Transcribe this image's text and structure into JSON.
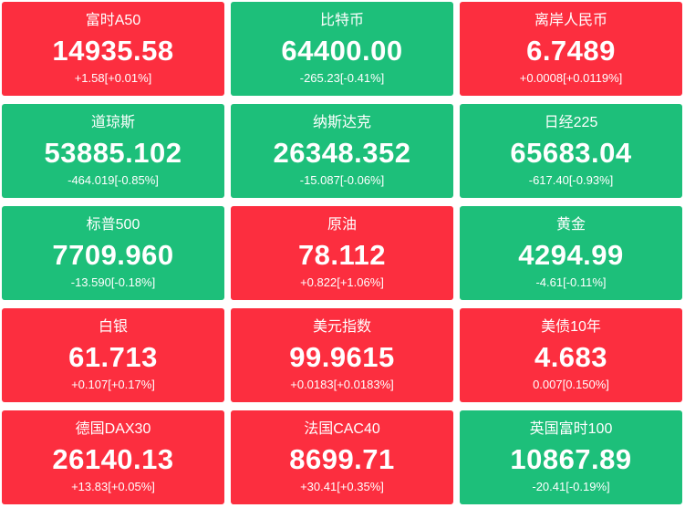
{
  "tiles": [
    {
      "name": "富时A50",
      "price": "14935.58",
      "change": "+1.58[+0.01%]",
      "color": "#fc2e3f"
    },
    {
      "name": "比特币",
      "price": "64400.00",
      "change": "-265.23[-0.41%]",
      "color": "#1dbf7a"
    },
    {
      "name": "离岸人民币",
      "price": "6.7489",
      "change": "+0.0008[+0.0119%]",
      "color": "#fc2e3f"
    },
    {
      "name": "道琼斯",
      "price": "53885.102",
      "change": "-464.019[-0.85%]",
      "color": "#1dbf7a"
    },
    {
      "name": "纳斯达克",
      "price": "26348.352",
      "change": "-15.087[-0.06%]",
      "color": "#1dbf7a"
    },
    {
      "name": "日经225",
      "price": "65683.04",
      "change": "-617.40[-0.93%]",
      "color": "#1dbf7a"
    },
    {
      "name": "标普500",
      "price": "7709.960",
      "change": "-13.590[-0.18%]",
      "color": "#1dbf7a"
    },
    {
      "name": "原油",
      "price": "78.112",
      "change": "+0.822[+1.06%]",
      "color": "#fc2e3f"
    },
    {
      "name": "黄金",
      "price": "4294.99",
      "change": "-4.61[-0.11%]",
      "color": "#1dbf7a"
    },
    {
      "name": "白银",
      "price": "61.713",
      "change": "+0.107[+0.17%]",
      "color": "#fc2e3f"
    },
    {
      "name": "美元指数",
      "price": "99.9615",
      "change": "+0.0183[+0.0183%]",
      "color": "#fc2e3f"
    },
    {
      "name": "美债10年",
      "price": "4.683",
      "change": "0.007[0.150%]",
      "color": "#fc2e3f"
    },
    {
      "name": "德国DAX30",
      "price": "26140.13",
      "change": "+13.83[+0.05%]",
      "color": "#fc2e3f"
    },
    {
      "name": "法国CAC40",
      "price": "8699.71",
      "change": "+30.41[+0.35%]",
      "color": "#fc2e3f"
    },
    {
      "name": "英国富时100",
      "price": "10867.89",
      "change": "-20.41[-0.19%]",
      "color": "#1dbf7a"
    }
  ]
}
